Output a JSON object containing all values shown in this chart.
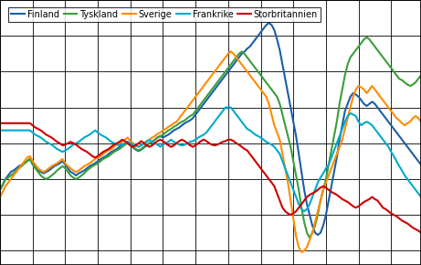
{
  "legend_labels": [
    "Finland",
    "Tyskland",
    "Sverige",
    "Frankrike",
    "Storbritannien"
  ],
  "colors": [
    "#1a5fa8",
    "#3a9e3a",
    "#ff8c00",
    "#00aacc",
    "#cc0000"
  ],
  "n_points": 156,
  "Finland": [
    -6.5,
    -5.8,
    -5.0,
    -4.5,
    -4.0,
    -3.8,
    -3.5,
    -3.2,
    -3.0,
    -2.8,
    -2.5,
    -2.2,
    -2.8,
    -3.2,
    -3.8,
    -4.0,
    -4.2,
    -4.0,
    -3.8,
    -3.5,
    -3.2,
    -3.0,
    -2.8,
    -2.5,
    -3.0,
    -3.5,
    -4.0,
    -4.2,
    -4.5,
    -4.2,
    -4.0,
    -3.8,
    -3.5,
    -3.2,
    -3.0,
    -2.8,
    -2.5,
    -2.2,
    -2.0,
    -1.8,
    -1.5,
    -1.2,
    -1.0,
    -0.8,
    -0.5,
    -0.2,
    0.0,
    0.2,
    -0.3,
    -0.6,
    -0.9,
    -1.1,
    -0.9,
    -0.6,
    -0.3,
    0.0,
    0.2,
    0.5,
    0.8,
    1.0,
    0.8,
    1.0,
    1.2,
    1.5,
    1.8,
    2.0,
    2.2,
    2.5,
    2.8,
    3.0,
    3.2,
    3.5,
    4.0,
    4.5,
    5.0,
    5.5,
    6.0,
    6.5,
    7.0,
    7.5,
    8.0,
    8.5,
    9.0,
    9.5,
    10.0,
    10.5,
    11.0,
    11.5,
    12.0,
    12.5,
    12.8,
    13.2,
    13.5,
    14.0,
    14.5,
    15.0,
    15.5,
    16.0,
    16.5,
    16.8,
    16.5,
    15.8,
    14.5,
    13.0,
    11.0,
    9.0,
    7.0,
    5.0,
    3.0,
    1.0,
    -1.5,
    -4.0,
    -6.5,
    -8.5,
    -10.0,
    -11.5,
    -12.5,
    -12.8,
    -12.5,
    -11.5,
    -10.0,
    -8.0,
    -6.0,
    -4.0,
    -2.0,
    0.5,
    2.5,
    4.5,
    5.5,
    6.5,
    7.0,
    6.8,
    6.5,
    6.0,
    5.5,
    5.2,
    5.5,
    5.8,
    5.5,
    5.0,
    4.5,
    4.0,
    3.5,
    3.0,
    2.5,
    2.0,
    1.5,
    1.0,
    0.5,
    0.0,
    -0.5,
    -1.0,
    -1.5,
    -2.0,
    -2.5,
    -3.0
  ],
  "Tyskland": [
    -6.5,
    -5.8,
    -5.0,
    -4.8,
    -4.5,
    -4.2,
    -3.8,
    -3.5,
    -3.2,
    -2.8,
    -2.5,
    -2.2,
    -3.0,
    -3.5,
    -4.0,
    -4.5,
    -4.8,
    -5.0,
    -4.8,
    -4.5,
    -4.2,
    -3.8,
    -3.5,
    -3.2,
    -3.5,
    -4.0,
    -4.5,
    -4.8,
    -5.0,
    -4.8,
    -4.5,
    -4.2,
    -3.8,
    -3.5,
    -3.2,
    -3.0,
    -2.8,
    -2.5,
    -2.2,
    -2.0,
    -1.8,
    -1.5,
    -1.2,
    -1.0,
    -0.8,
    -0.5,
    -0.2,
    0.0,
    -0.3,
    -0.5,
    -0.8,
    -1.0,
    -0.8,
    -0.5,
    -0.2,
    0.0,
    0.2,
    0.5,
    0.8,
    1.0,
    1.2,
    1.5,
    1.8,
    2.0,
    2.3,
    2.5,
    2.8,
    3.0,
    3.2,
    3.5,
    3.8,
    4.0,
    4.5,
    5.0,
    5.5,
    6.0,
    6.5,
    7.0,
    7.5,
    8.0,
    8.5,
    9.0,
    9.5,
    10.0,
    10.5,
    11.0,
    11.5,
    12.0,
    12.5,
    12.8,
    12.5,
    12.0,
    11.5,
    11.0,
    10.5,
    10.0,
    9.5,
    9.0,
    8.5,
    8.0,
    7.5,
    7.0,
    6.5,
    5.5,
    4.0,
    2.5,
    1.0,
    -0.5,
    -2.5,
    -4.5,
    -6.5,
    -9.0,
    -11.0,
    -12.5,
    -13.2,
    -12.5,
    -11.5,
    -10.0,
    -8.0,
    -6.5,
    -5.0,
    -3.0,
    -1.0,
    1.0,
    3.0,
    5.5,
    7.5,
    9.5,
    11.0,
    12.0,
    12.5,
    13.0,
    13.5,
    14.0,
    14.5,
    14.8,
    14.5,
    14.0,
    13.5,
    13.0,
    12.5,
    12.0,
    11.5,
    11.0,
    10.5,
    10.0,
    9.5,
    9.0,
    8.8,
    8.5,
    8.2,
    8.0,
    8.2,
    8.5,
    9.0,
    9.5
  ],
  "Sverige": [
    -7.5,
    -6.8,
    -6.0,
    -5.5,
    -5.0,
    -4.5,
    -4.0,
    -3.5,
    -3.0,
    -2.5,
    -2.0,
    -1.8,
    -2.5,
    -3.0,
    -3.5,
    -3.8,
    -4.0,
    -3.8,
    -3.5,
    -3.2,
    -3.0,
    -2.8,
    -2.5,
    -2.2,
    -2.8,
    -3.2,
    -3.5,
    -3.8,
    -4.0,
    -3.8,
    -3.5,
    -3.2,
    -3.0,
    -2.8,
    -2.5,
    -2.2,
    -2.0,
    -1.8,
    -1.5,
    -1.2,
    -1.0,
    -0.8,
    -0.5,
    -0.2,
    0.0,
    0.2,
    0.5,
    0.8,
    0.3,
    0.0,
    -0.3,
    -0.5,
    -0.3,
    0.0,
    0.3,
    0.5,
    0.8,
    1.0,
    1.3,
    1.5,
    1.8,
    2.0,
    2.3,
    2.5,
    2.8,
    3.0,
    3.5,
    4.0,
    4.5,
    5.0,
    5.5,
    6.0,
    6.5,
    7.0,
    7.5,
    8.0,
    8.5,
    9.0,
    9.5,
    10.0,
    10.5,
    11.0,
    11.5,
    12.0,
    12.5,
    12.8,
    12.5,
    12.0,
    11.5,
    11.0,
    10.5,
    10.0,
    9.5,
    9.0,
    8.5,
    8.0,
    7.5,
    7.0,
    6.5,
    5.5,
    4.0,
    2.5,
    1.5,
    0.5,
    -1.5,
    -3.5,
    -5.5,
    -8.0,
    -10.5,
    -13.0,
    -14.5,
    -15.2,
    -15.0,
    -14.5,
    -13.5,
    -12.5,
    -11.0,
    -9.5,
    -8.0,
    -6.5,
    -5.5,
    -4.5,
    -3.5,
    -2.5,
    -1.5,
    -0.5,
    0.5,
    2.0,
    3.5,
    5.0,
    6.5,
    7.5,
    8.0,
    7.8,
    7.5,
    7.0,
    7.5,
    8.0,
    7.5,
    7.0,
    6.5,
    6.0,
    5.5,
    5.0,
    4.5,
    4.0,
    3.5,
    3.2,
    2.8,
    2.5,
    2.8,
    3.0,
    3.5,
    3.8,
    3.5,
    3.0
  ],
  "Frankrike": [
    1.8,
    1.8,
    1.8,
    1.8,
    1.8,
    1.8,
    1.8,
    1.8,
    1.8,
    1.8,
    1.8,
    1.8,
    1.5,
    1.2,
    1.0,
    0.8,
    0.5,
    0.2,
    0.0,
    -0.2,
    -0.5,
    -0.8,
    -1.0,
    -1.2,
    -1.0,
    -0.8,
    -0.5,
    -0.2,
    0.0,
    0.2,
    0.5,
    0.8,
    1.0,
    1.2,
    1.5,
    1.8,
    1.5,
    1.2,
    1.0,
    0.8,
    0.5,
    0.2,
    0.0,
    -0.2,
    -0.3,
    -0.2,
    0.0,
    0.2,
    0.0,
    -0.2,
    -0.3,
    -0.5,
    -0.3,
    0.0,
    0.2,
    0.5,
    0.2,
    0.0,
    -0.2,
    -0.5,
    -0.2,
    0.0,
    0.2,
    0.5,
    0.2,
    0.0,
    -0.2,
    -0.3,
    -0.2,
    0.0,
    0.2,
    0.3,
    0.5,
    0.8,
    1.0,
    1.2,
    1.5,
    2.0,
    2.5,
    3.0,
    3.5,
    4.0,
    4.5,
    5.0,
    5.0,
    5.0,
    4.5,
    4.0,
    3.5,
    3.0,
    2.5,
    2.0,
    1.8,
    1.5,
    1.2,
    1.0,
    0.8,
    0.5,
    0.2,
    0.0,
    -0.2,
    -0.5,
    -1.0,
    -1.5,
    -2.5,
    -3.5,
    -4.5,
    -5.5,
    -6.5,
    -7.5,
    -8.5,
    -9.2,
    -9.5,
    -9.2,
    -8.5,
    -7.5,
    -6.5,
    -5.5,
    -4.8,
    -4.2,
    -3.5,
    -3.0,
    -2.0,
    -1.0,
    0.0,
    1.0,
    2.0,
    3.0,
    3.8,
    4.2,
    4.0,
    3.8,
    3.0,
    2.5,
    2.8,
    3.0,
    2.8,
    2.5,
    2.0,
    1.5,
    1.0,
    0.5,
    0.0,
    -0.5,
    -1.2,
    -1.8,
    -2.5,
    -3.2,
    -3.8,
    -4.5,
    -5.0,
    -5.5,
    -6.0,
    -6.5,
    -7.0,
    -7.5
  ],
  "Storbritannien": [
    2.8,
    2.8,
    2.8,
    2.8,
    2.8,
    2.8,
    2.8,
    2.8,
    2.8,
    2.8,
    2.8,
    2.8,
    2.5,
    2.2,
    2.0,
    1.8,
    1.5,
    1.2,
    1.0,
    0.8,
    0.5,
    0.2,
    0.0,
    -0.3,
    -0.2,
    0.0,
    0.2,
    0.0,
    -0.2,
    -0.5,
    -0.8,
    -1.0,
    -1.2,
    -1.5,
    -1.8,
    -2.0,
    -1.8,
    -1.5,
    -1.2,
    -1.0,
    -0.8,
    -0.5,
    -0.2,
    0.0,
    0.2,
    0.5,
    0.3,
    0.0,
    -0.3,
    -0.5,
    -0.3,
    0.0,
    0.3,
    0.0,
    -0.3,
    -0.5,
    -0.3,
    0.0,
    0.3,
    0.5,
    0.3,
    0.0,
    -0.3,
    -0.5,
    -0.3,
    0.0,
    0.3,
    0.5,
    0.3,
    0.0,
    -0.3,
    -0.5,
    -0.3,
    0.0,
    0.3,
    0.5,
    0.3,
    0.0,
    -0.2,
    -0.3,
    -0.2,
    0.0,
    0.2,
    0.3,
    0.5,
    0.5,
    0.3,
    0.0,
    -0.2,
    -0.5,
    -0.8,
    -1.0,
    -1.5,
    -2.0,
    -2.5,
    -3.0,
    -3.5,
    -4.0,
    -4.5,
    -5.0,
    -5.5,
    -6.0,
    -7.0,
    -8.0,
    -9.0,
    -9.5,
    -9.8,
    -10.0,
    -9.8,
    -9.5,
    -9.0,
    -8.5,
    -8.0,
    -7.5,
    -7.2,
    -7.0,
    -6.8,
    -6.5,
    -6.2,
    -6.0,
    -6.2,
    -6.5,
    -6.8,
    -7.0,
    -7.2,
    -7.5,
    -7.8,
    -8.0,
    -8.2,
    -8.5,
    -8.8,
    -9.0,
    -8.8,
    -8.5,
    -8.2,
    -8.0,
    -7.8,
    -7.5,
    -7.8,
    -8.0,
    -8.5,
    -9.0,
    -9.2,
    -9.5,
    -9.8,
    -10.0,
    -10.2,
    -10.5,
    -10.8,
    -11.0,
    -11.2,
    -11.5,
    -11.8,
    -12.0,
    -12.2,
    -12.5
  ],
  "xlim": [
    0,
    155
  ],
  "ylim": [
    -17,
    20
  ],
  "background_color": "#ffffff",
  "grid_color": "#000000",
  "linewidth": 1.5
}
